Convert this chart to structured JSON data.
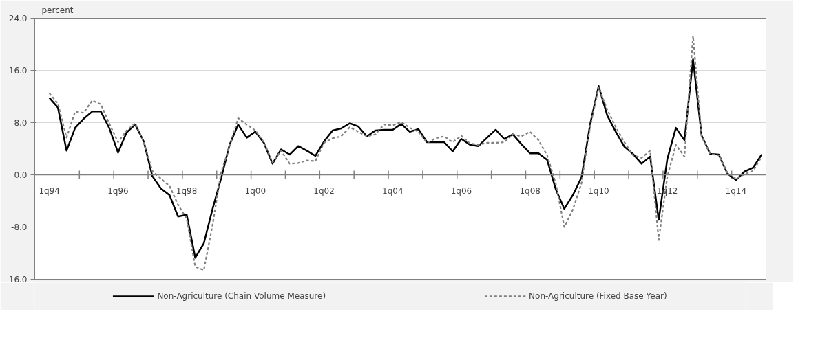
{
  "chart_data": {
    "type": "line",
    "ylabel": "percent",
    "categories": [
      "1q94",
      null,
      null,
      null,
      null,
      null,
      null,
      null,
      "1q96",
      null,
      null,
      null,
      null,
      null,
      null,
      null,
      "1q98",
      null,
      null,
      null,
      null,
      null,
      null,
      null,
      "1q00",
      null,
      null,
      null,
      null,
      null,
      null,
      null,
      "1q02",
      null,
      null,
      null,
      null,
      null,
      null,
      null,
      "1q04",
      null,
      null,
      null,
      null,
      null,
      null,
      null,
      "1q06",
      null,
      null,
      null,
      null,
      null,
      null,
      null,
      "1q08",
      null,
      null,
      null,
      null,
      null,
      null,
      null,
      "1q10",
      null,
      null,
      null,
      null,
      null,
      null,
      null,
      "1q12",
      null,
      null,
      null,
      null,
      null,
      null,
      null,
      "1q14",
      null,
      null,
      null
    ],
    "series": [
      {
        "name": "Non-Agriculture (Chain Volume Measure)",
        "color": "#000000",
        "line_style": "solid",
        "values": [
          11.8,
          10.3,
          3.7,
          7.2,
          8.6,
          9.7,
          9.7,
          7.1,
          3.4,
          6.5,
          7.7,
          5.1,
          -0.2,
          -2.1,
          -3.1,
          -6.4,
          -6.1,
          -12.7,
          -10.5,
          -5.3,
          -0.6,
          4.6,
          7.7,
          5.7,
          6.6,
          4.9,
          1.7,
          3.9,
          3.1,
          4.4,
          3.7,
          2.9,
          5.1,
          6.8,
          7.1,
          7.9,
          7.4,
          5.9,
          6.8,
          6.9,
          6.9,
          7.8,
          6.6,
          7.0,
          5.0,
          5.0,
          5.0,
          3.6,
          5.5,
          4.6,
          4.4,
          5.7,
          6.9,
          5.5,
          6.2,
          4.7,
          3.3,
          3.3,
          2.3,
          -2.2,
          -5.2,
          -3.1,
          -0.4,
          7.7,
          13.6,
          9.1,
          6.6,
          4.3,
          3.2,
          1.7,
          2.8,
          -6.9,
          2.4,
          7.2,
          5.3,
          17.7,
          6.0,
          3.2,
          3.1,
          0.2,
          -0.8,
          0.5,
          1.1,
          3.1
        ]
      },
      {
        "name": "Non-Agriculture (Fixed Base Year)",
        "color": "#808080",
        "line_style": "dashed",
        "values": [
          12.5,
          10.9,
          5.7,
          9.7,
          9.5,
          11.4,
          10.8,
          7.8,
          5.0,
          6.8,
          7.9,
          5.0,
          0.6,
          -0.6,
          -1.7,
          -4.6,
          -6.7,
          -14.1,
          -14.6,
          -7.8,
          0.3,
          4.4,
          8.7,
          7.7,
          6.8,
          5.0,
          1.9,
          3.7,
          1.7,
          1.8,
          2.2,
          2.1,
          4.9,
          5.6,
          5.9,
          7.3,
          6.6,
          5.9,
          6.2,
          7.7,
          7.6,
          8.1,
          7.2,
          6.6,
          4.9,
          5.6,
          5.9,
          5.0,
          6.0,
          4.8,
          4.6,
          4.9,
          4.9,
          5.0,
          6.2,
          5.9,
          6.6,
          5.3,
          3.0,
          -1.3,
          -8.0,
          -5.3,
          -1.3,
          7.3,
          13.4,
          10.0,
          7.3,
          5.0,
          3.0,
          2.6,
          3.7,
          -10.0,
          -0.3,
          4.6,
          2.8,
          21.3,
          5.9,
          3.2,
          3.0,
          0.3,
          -0.6,
          0.1,
          0.6,
          2.8
        ]
      }
    ],
    "ylim": [
      -16,
      24
    ],
    "yticks": [
      {
        "value": -16,
        "label": "-16.0"
      },
      {
        "value": -8,
        "label": "-8.0"
      },
      {
        "value": 0,
        "label": "0.0"
      },
      {
        "value": 8,
        "label": "8.0"
      },
      {
        "value": 16,
        "label": "16.0"
      },
      {
        "value": 24,
        "label": "24.0"
      }
    ],
    "grid": "y",
    "legend": "bottom"
  }
}
